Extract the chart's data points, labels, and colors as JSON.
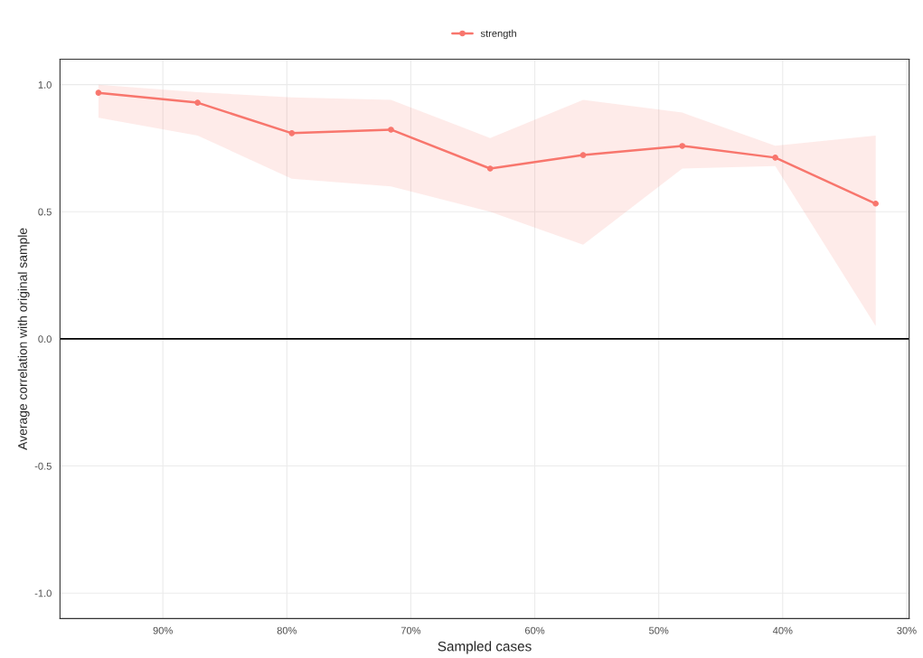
{
  "chart_data": {
    "type": "line",
    "xlabel": "Sampled cases",
    "ylabel": "Average correlation with original sample",
    "x": [
      95.2,
      87.2,
      79.6,
      71.6,
      63.6,
      56.1,
      48.1,
      40.6,
      32.5
    ],
    "series": [
      {
        "name": "strength",
        "color": "#f8766d",
        "values": [
          0.968,
          0.929,
          0.809,
          0.823,
          0.67,
          0.723,
          0.759,
          0.713,
          0.532
        ],
        "lower": [
          0.87,
          0.8,
          0.63,
          0.6,
          0.5,
          0.37,
          0.67,
          0.68,
          0.05
        ],
        "upper": [
          1.0,
          0.97,
          0.95,
          0.94,
          0.79,
          0.94,
          0.89,
          0.76,
          0.8
        ]
      }
    ],
    "xlim": [
      98.3,
      29.8
    ],
    "ylim": [
      -1.1,
      1.1
    ],
    "xticks": [
      {
        "value": 90,
        "label": "90%"
      },
      {
        "value": 80,
        "label": "80%"
      },
      {
        "value": 70,
        "label": "70%"
      },
      {
        "value": 60,
        "label": "60%"
      },
      {
        "value": 50,
        "label": "50%"
      },
      {
        "value": 40,
        "label": "40%"
      },
      {
        "value": 30,
        "label": "30%"
      }
    ],
    "yticks": [
      {
        "value": -1,
        "label": "-1.0"
      },
      {
        "value": -0.5,
        "label": "-0.5"
      },
      {
        "value": 0,
        "label": "0.0"
      },
      {
        "value": 0.5,
        "label": "0.5"
      },
      {
        "value": 1,
        "label": "1.0"
      }
    ],
    "ref_lines": [
      {
        "axis": "y",
        "value": 0,
        "color": "#000000"
      }
    ],
    "grid": true,
    "legend": "top",
    "marker": "circle",
    "line_style": "solid"
  }
}
